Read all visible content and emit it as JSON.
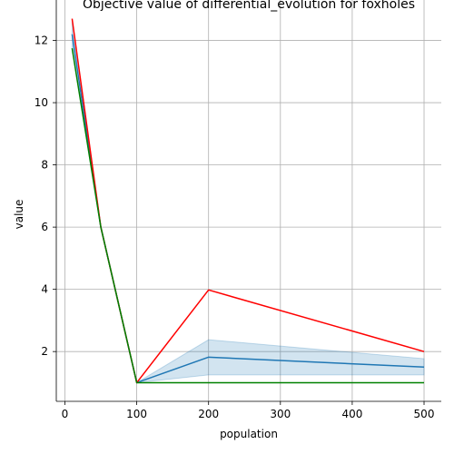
{
  "chart_data": {
    "type": "line",
    "title": "Objective value of differential_evolution for foxholes",
    "xlabel": "population",
    "ylabel": "value",
    "xlim": [
      -12,
      524
    ],
    "ylim": [
      0.4,
      13.3
    ],
    "xticks": [
      0,
      100,
      200,
      300,
      400,
      500
    ],
    "yticks": [
      2,
      4,
      6,
      8,
      10,
      12
    ],
    "grid": true,
    "legend": "none",
    "band": {
      "x": [
        10,
        50,
        100,
        200,
        500
      ],
      "lower": [
        11.75,
        5.95,
        1.0,
        1.25,
        1.25
      ],
      "upper": [
        12.65,
        6.05,
        1.0,
        2.38,
        1.77
      ],
      "color": "#1f77b4"
    },
    "series": [
      {
        "x": [
          10,
          50,
          100,
          200,
          500
        ],
        "values": [
          12.2,
          6.0,
          1.0,
          1.82,
          1.5
        ],
        "color": "#1f77b4"
      },
      {
        "x": [
          10,
          50,
          100,
          200,
          500
        ],
        "values": [
          12.7,
          6.0,
          1.0,
          3.98,
          2.0
        ],
        "color": "#ff0000"
      },
      {
        "x": [
          10,
          50,
          100,
          200,
          500
        ],
        "values": [
          11.75,
          6.0,
          1.0,
          1.0,
          1.0
        ],
        "color": "#008000"
      }
    ]
  }
}
